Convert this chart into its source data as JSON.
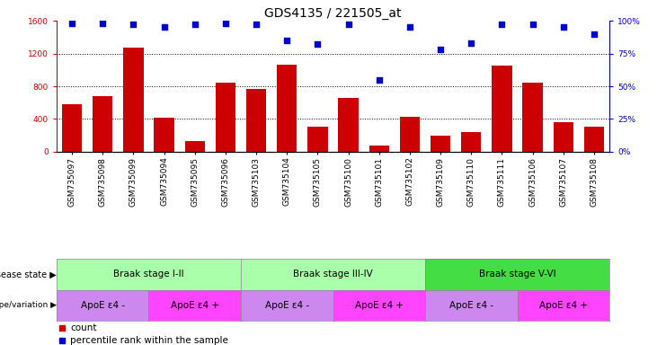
{
  "title": "GDS4135 / 221505_at",
  "samples": [
    "GSM735097",
    "GSM735098",
    "GSM735099",
    "GSM735094",
    "GSM735095",
    "GSM735096",
    "GSM735103",
    "GSM735104",
    "GSM735105",
    "GSM735100",
    "GSM735101",
    "GSM735102",
    "GSM735109",
    "GSM735110",
    "GSM735111",
    "GSM735106",
    "GSM735107",
    "GSM735108"
  ],
  "counts": [
    580,
    680,
    1270,
    420,
    130,
    840,
    770,
    1060,
    310,
    660,
    75,
    430,
    200,
    240,
    1050,
    840,
    360,
    310
  ],
  "percentiles": [
    98,
    98,
    97,
    95,
    97,
    98,
    97,
    85,
    82,
    97,
    55,
    95,
    78,
    83,
    97,
    97,
    95,
    90
  ],
  "bar_color": "#cc0000",
  "dot_color": "#0000cc",
  "ylim_left": [
    0,
    1600
  ],
  "ylim_right": [
    0,
    100
  ],
  "yticks_left": [
    0,
    400,
    800,
    1200,
    1600
  ],
  "yticks_right": [
    0,
    25,
    50,
    75,
    100
  ],
  "disease_state_groups": [
    {
      "label": "Braak stage I-II",
      "start": 0,
      "end": 6,
      "color": "#aaffaa"
    },
    {
      "label": "Braak stage III-IV",
      "start": 6,
      "end": 12,
      "color": "#aaffaa"
    },
    {
      "label": "Braak stage V-VI",
      "start": 12,
      "end": 18,
      "color": "#44dd44"
    }
  ],
  "genotype_groups": [
    {
      "label": "ApoE ε4 -",
      "start": 0,
      "end": 3,
      "color": "#cc88ee"
    },
    {
      "label": "ApoE ε4 +",
      "start": 3,
      "end": 6,
      "color": "#ff44ff"
    },
    {
      "label": "ApoE ε4 -",
      "start": 6,
      "end": 9,
      "color": "#cc88ee"
    },
    {
      "label": "ApoE ε4 +",
      "start": 9,
      "end": 12,
      "color": "#ff44ff"
    },
    {
      "label": "ApoE ε4 -",
      "start": 12,
      "end": 15,
      "color": "#cc88ee"
    },
    {
      "label": "ApoE ε4 +",
      "start": 15,
      "end": 18,
      "color": "#ff44ff"
    }
  ],
  "left_label_color": "#cc0000",
  "right_label_color": "#0000cc",
  "background_color": "#ffffff",
  "title_fontsize": 10,
  "tick_fontsize": 6.5,
  "bar_width": 0.65,
  "grid_yticks": [
    400,
    800,
    1200
  ],
  "row_label_fontsize": 7,
  "row_content_fontsize": 7.5,
  "legend_fontsize": 7.5
}
